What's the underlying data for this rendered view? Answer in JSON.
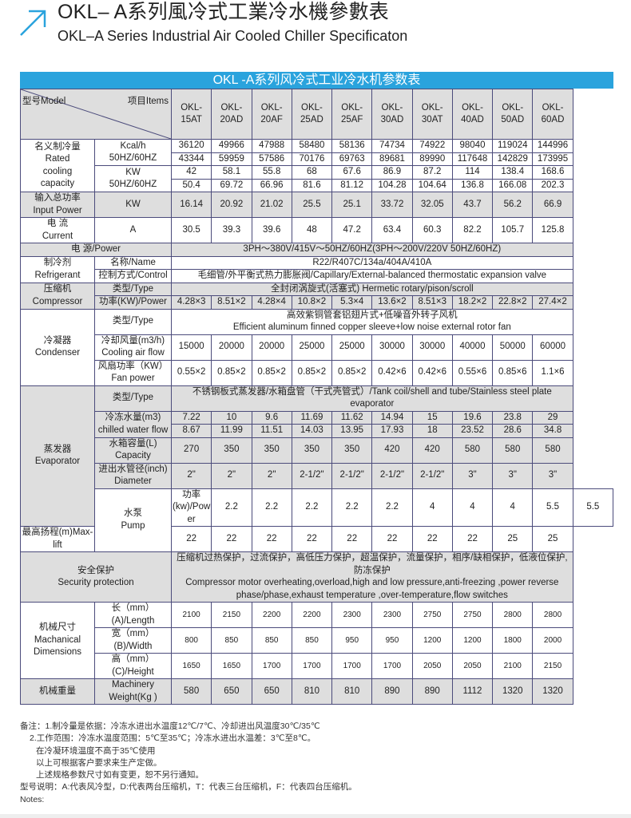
{
  "title_cn": "OKL– A系列風冷式工業冷水機參數表",
  "title_en": "OKL–A Series Industrial Air Cooled Chiller Specificaton",
  "banner": "OKL -A系列风冷式工业冷水机参数表",
  "colors": {
    "banner": "#2aa3dd",
    "border": "#4b4b7b",
    "gray_row": "#dedede",
    "arrow": "#2aa3dd"
  },
  "header": {
    "model": "型号Model",
    "items": "项目Items",
    "models": [
      "OKL-\n15AT",
      "OKL-\n20AD",
      "OKL-\n20AF",
      "OKL-\n25AD",
      "OKL-\n25AF",
      "OKL-\n30AD",
      "OKL-\n30AT",
      "OKL-\n40AD",
      "OKL-\n50AD",
      "OKL-\n60AD"
    ]
  },
  "rows": [
    {
      "bg": "w",
      "cells": [
        {
          "t": "名义制冷量\nRated\ncooling\ncapacity",
          "rs": 4
        },
        {
          "t": "Kcal/h\n50HZ/60HZ",
          "rs": 2
        },
        "36120",
        "49966",
        "47988",
        "58480",
        "58136",
        "74734",
        "74922",
        "98040",
        "119024",
        "144996"
      ]
    },
    {
      "bg": "w",
      "cells": [
        "43344",
        "59959",
        "57586",
        "70176",
        "69763",
        "89681",
        "89990",
        "117648",
        "142829",
        "173995"
      ]
    },
    {
      "bg": "w",
      "cells": [
        {
          "t": "KW\n50HZ/60HZ",
          "rs": 2
        },
        "42",
        "58.1",
        "55.8",
        "68",
        "67.6",
        "86.9",
        "87.2",
        "114",
        "138.4",
        "168.6"
      ]
    },
    {
      "bg": "w",
      "cells": [
        "50.4",
        "69.72",
        "66.96",
        "81.6",
        "81.12",
        "104.28",
        "104.64",
        "136.8",
        "166.08",
        "202.3"
      ]
    },
    {
      "bg": "g",
      "cells": [
        "输入总功率\nInput Power",
        "KW",
        "16.14",
        "20.92",
        "21.02",
        "25.5",
        "25.1",
        "33.72",
        "32.05",
        "43.7",
        "56.2",
        "66.9"
      ]
    },
    {
      "bg": "w",
      "cells": [
        "电  流\nCurrent",
        "A",
        "30.5",
        "39.3",
        "39.6",
        "48",
        "47.2",
        "63.4",
        "60.3",
        "82.2",
        "105.7",
        "125.8"
      ]
    },
    {
      "bg": "g",
      "cells": [
        {
          "t": "电        源/Power",
          "cs": 2
        },
        {
          "t": "3PH～380V/415V～50HZ/60HZ(3PH～200V/220V   50HZ/60HZ)",
          "cs": 10
        }
      ]
    },
    {
      "bg": "w",
      "cells": [
        {
          "t": "制冷剂\nRefrigerant",
          "rs": 2
        },
        "名称/Name",
        {
          "t": "R22/R407C/134a/404A/410A",
          "cs": 10
        }
      ]
    },
    {
      "bg": "w",
      "cells": [
        "控制方式/Control",
        {
          "t": "毛细管/外平衡式热力膨胀阀/Capillary/External-balanced thermostatic expansion valve",
          "cs": 10
        }
      ]
    },
    {
      "bg": "g",
      "cells": [
        {
          "t": "压缩机\nCompressor",
          "rs": 2
        },
        "类型/Type",
        {
          "t": "全封闭涡旋式(活塞式)                    Hermetic rotary/pison/scroll",
          "cs": 10
        }
      ]
    },
    {
      "bg": "g",
      "cells": [
        "功率(KW)/Power",
        "4.28×3",
        "8.51×2",
        "4.28×4",
        "10.8×2",
        "5.3×4",
        "13.6×2",
        "8.51×3",
        "18.2×2",
        "22.8×2",
        "27.4×2"
      ]
    },
    {
      "bg": "w",
      "cells": [
        {
          "t": "冷凝器\nCondenser",
          "rs": 3
        },
        "类型/Type",
        {
          "t": "高效紫铜管套铝翅片式+低噪音外转子风机\nEfficient aluminum finned copper sleeve+low noise external rotor fan",
          "cs": 10
        }
      ]
    },
    {
      "bg": "w",
      "cells": [
        "冷却风量(m3/h)\nCooling air flow",
        "15000",
        "20000",
        "20000",
        "25000",
        "25000",
        "30000",
        "30000",
        "40000",
        "50000",
        "60000"
      ]
    },
    {
      "bg": "w",
      "cells": [
        "风扇功率（KW）\nFan power",
        "0.55×2",
        "0.85×2",
        "0.85×2",
        "0.85×2",
        "0.85×2",
        "0.42×6",
        "0.42×6",
        "0.55×6",
        "0.85×6",
        "1.1×6"
      ]
    },
    {
      "bg": "g",
      "cells": [
        {
          "t": "蒸发器\nEvaporator",
          "rs": 6
        },
        "类型/Type",
        {
          "t": "不锈钢板式蒸发器/水箱盘管（干式壳管式）/Tank coil/shell and tube/Stainless steel plate evaporator",
          "cs": 10
        }
      ]
    },
    {
      "bg": "g",
      "cells": [
        {
          "t": "冷冻水量(m3)\nchilled water flow",
          "rs": 2
        },
        "7.22",
        "10",
        "9.6",
        "11.69",
        "11.62",
        "14.94",
        "15",
        "19.6",
        "23.8",
        "29"
      ]
    },
    {
      "bg": "g",
      "cells": [
        "8.67",
        "11.99",
        "11.51",
        "14.03",
        "13.95",
        "17.93",
        "18",
        "23.52",
        "28.6",
        "34.8"
      ]
    },
    {
      "bg": "g",
      "cells": [
        "水箱容量(L)\nCapacity",
        "270",
        "350",
        "350",
        "350",
        "350",
        "420",
        "420",
        "580",
        "580",
        "580"
      ]
    },
    {
      "bg": "g",
      "cells": [
        "进出水管径(inch)\nDiameter",
        "2\"",
        "2\"",
        "2\"",
        "2-1/2\"",
        "2-1/2\"",
        "2-1/2\"",
        "2-1/2\"",
        "3\"",
        "3\"",
        "3\""
      ]
    },
    {
      "bg": "w",
      "cells": [
        {
          "t": "水泵\nPump",
          "rs": 2
        },
        "功率(kw)/Power",
        "2.2",
        "2.2",
        "2.2",
        "2.2",
        "2.2",
        "4",
        "4",
        "4",
        "5.5",
        "5.5"
      ]
    },
    {
      "bg": "w",
      "cells": [
        "最高扬程(m)Max-lift",
        "22",
        "22",
        "22",
        "22",
        "22",
        "22",
        "22",
        "22",
        "25",
        "25"
      ]
    },
    {
      "bg": "g",
      "cells": [
        {
          "t": "安全保护\nSecurity protection",
          "cs": 2
        },
        {
          "t": "压缩机过热保护，过流保护，高低压力保护，超温保护，流量保护，相序/缺相保护，低液位保护,防冻保护\nCompressor motor overheating,overload,high and low pressure,anti-freezing ,power reverse\nphase/phase,exhaust temperature ,over-temperature,flow switches",
          "cs": 10
        }
      ]
    },
    {
      "bg": "w",
      "cells": [
        {
          "t": "机械尺寸\nMachanical\nDimensions",
          "rs": 3
        },
        "长（mm）(A)/Length",
        {
          "t": "2100",
          "c": "sm"
        },
        {
          "t": "2150",
          "c": "sm"
        },
        {
          "t": "2200",
          "c": "sm"
        },
        {
          "t": "2200",
          "c": "sm"
        },
        {
          "t": "2300",
          "c": "sm"
        },
        {
          "t": "2300",
          "c": "sm"
        },
        {
          "t": "2750",
          "c": "sm"
        },
        {
          "t": "2750",
          "c": "sm"
        },
        {
          "t": "2800",
          "c": "sm"
        },
        {
          "t": "2800",
          "c": "sm"
        }
      ]
    },
    {
      "bg": "w",
      "cells": [
        "宽（mm）(B)/Width",
        {
          "t": "800",
          "c": "sm"
        },
        {
          "t": "850",
          "c": "sm"
        },
        {
          "t": "850",
          "c": "sm"
        },
        {
          "t": "850",
          "c": "sm"
        },
        {
          "t": "950",
          "c": "sm"
        },
        {
          "t": "950",
          "c": "sm"
        },
        {
          "t": "1200",
          "c": "sm"
        },
        {
          "t": "1200",
          "c": "sm"
        },
        {
          "t": "1800",
          "c": "sm"
        },
        {
          "t": "2000",
          "c": "sm"
        }
      ]
    },
    {
      "bg": "w",
      "cells": [
        "高（mm）(C)/Height",
        {
          "t": "1650",
          "c": "sm"
        },
        {
          "t": "1650",
          "c": "sm"
        },
        {
          "t": "1700",
          "c": "sm"
        },
        {
          "t": "1700",
          "c": "sm"
        },
        {
          "t": "1700",
          "c": "sm"
        },
        {
          "t": "1700",
          "c": "sm"
        },
        {
          "t": "2050",
          "c": "sm"
        },
        {
          "t": "2050",
          "c": "sm"
        },
        {
          "t": "2100",
          "c": "sm"
        },
        {
          "t": "2150",
          "c": "sm"
        }
      ]
    },
    {
      "bg": "g",
      "cells": [
        "机械重量",
        "Machinery\nWeight(Kg )",
        "580",
        "650",
        "650",
        "810",
        "810",
        "890",
        "890",
        "1112",
        "1320",
        "1320"
      ]
    }
  ],
  "notes": [
    "备注：1.制冷量是依据：冷冻水进出水温度12℃/7℃、冷却进出风温度30℃/35℃",
    "2.工作范围：冷冻水温度范围：5℃至35℃；冷冻水进出水温差：3℃至8℃。",
    "在冷凝环境温度不高于35℃使用",
    "以上可根据客户要求来生产定做。",
    "上述规格参数尺寸如有变更，恕不另行通知。",
    "型号说明：A:代表风冷型，D:代表两台压缩机，T：代表三台压缩机，F：代表四台压缩机。",
    "Notes:"
  ]
}
